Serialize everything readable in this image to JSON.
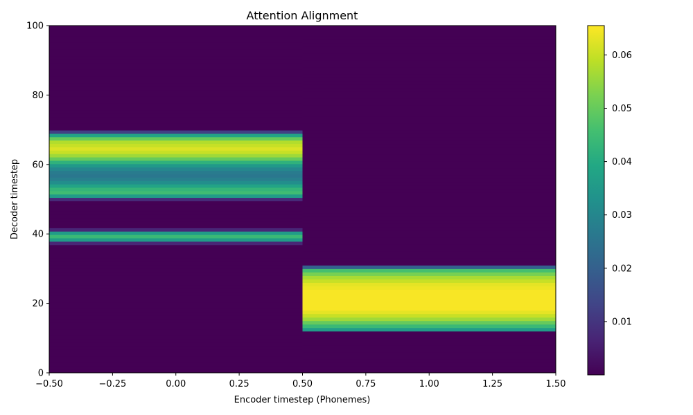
{
  "chart_data": {
    "type": "heatmap",
    "title": "Attention Alignment",
    "xlabel": "Encoder timestep (Phonemes)",
    "ylabel": "Decoder timestep",
    "xlim": [
      -0.5,
      1.5
    ],
    "ylim": [
      0,
      100
    ],
    "x_ticks": [
      "−0.50",
      "−0.25",
      "0.00",
      "0.25",
      "0.50",
      "0.75",
      "1.00",
      "1.25",
      "1.50"
    ],
    "y_ticks": [
      "0",
      "20",
      "40",
      "60",
      "80",
      "100"
    ],
    "colorbar": {
      "colormap": "viridis",
      "vmin": 0.0,
      "vmax": 0.0655,
      "ticks": [
        "0.01",
        "0.02",
        "0.03",
        "0.04",
        "0.05",
        "0.06"
      ]
    },
    "columns": [
      {
        "encoder_step": 0,
        "decoder_range": [
          0,
          100
        ],
        "values": [
          0,
          0,
          0,
          0,
          0,
          0,
          0,
          0,
          0,
          0,
          0,
          0,
          0,
          0,
          0,
          0,
          0,
          0,
          0,
          0,
          0,
          0,
          0,
          0,
          0,
          0,
          0,
          0,
          0,
          0,
          0,
          0,
          0,
          0,
          0,
          0,
          0,
          0,
          0.007,
          0.036,
          0.044,
          0.036,
          0.007,
          0,
          0,
          0,
          0,
          0,
          0,
          0,
          0,
          0.008,
          0.036,
          0.045,
          0.043,
          0.038,
          0.032,
          0.028,
          0.026,
          0.027,
          0.03,
          0.035,
          0.042,
          0.05,
          0.056,
          0.06,
          0.062,
          0.06,
          0.058,
          0.05,
          0.038,
          0.012,
          0,
          0,
          0,
          0,
          0,
          0,
          0,
          0,
          0,
          0,
          0,
          0,
          0,
          0,
          0,
          0,
          0,
          0,
          0,
          0,
          0,
          0,
          0,
          0,
          0,
          0,
          0,
          0,
          0,
          0,
          0
        ]
      },
      {
        "encoder_step": 1,
        "decoder_range": [
          0,
          100
        ],
        "values": [
          0,
          0,
          0,
          0,
          0,
          0,
          0,
          0,
          0,
          0,
          0,
          0,
          0.036,
          0.044,
          0.05,
          0.056,
          0.06,
          0.063,
          0.065,
          0.065,
          0.065,
          0.065,
          0.065,
          0.065,
          0.064,
          0.063,
          0.06,
          0.057,
          0.052,
          0.046,
          0.02,
          0,
          0,
          0,
          0,
          0,
          0,
          0,
          0,
          0,
          0,
          0,
          0,
          0,
          0,
          0,
          0,
          0,
          0,
          0,
          0,
          0,
          0,
          0,
          0,
          0,
          0,
          0,
          0,
          0,
          0,
          0,
          0,
          0,
          0,
          0,
          0,
          0,
          0,
          0,
          0,
          0,
          0,
          0,
          0,
          0,
          0,
          0,
          0,
          0,
          0,
          0,
          0,
          0,
          0,
          0,
          0,
          0,
          0,
          0,
          0,
          0,
          0,
          0,
          0,
          0,
          0,
          0,
          0,
          0
        ]
      }
    ]
  }
}
